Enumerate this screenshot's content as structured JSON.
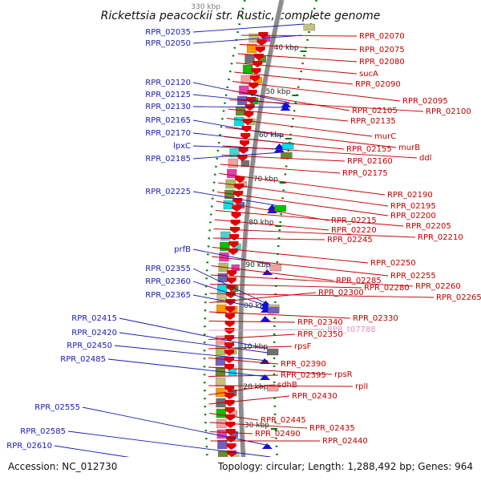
{
  "title": "Rickettsia peacockii str. Rustic, complete genome",
  "footer": {
    "accession": "Accession: NC_012730",
    "summary": "Topology: circular; Length: 1,288,492 bp; Genes: 964"
  },
  "top_partial_tick": "330 kbp",
  "ticks": [
    "340 kbp",
    "350 kbp",
    "360 kbp",
    "370 kbp",
    "380 kbp",
    "390 kbp",
    "400 kbp",
    "410 kbp",
    "420 kbp",
    "430 kbp"
  ],
  "left_genes": [
    "RPR_02035",
    "RPR_02050",
    "RPR_02120",
    "RPR_02125",
    "RPR_02130",
    "RPR_02165",
    "RPR_02170",
    "lpxC",
    "RPR_02185",
    "RPR_02225",
    "prfB",
    "RPR_02355",
    "RPR_02360",
    "RPR_02365",
    "RPR_02415",
    "RPR_02420",
    "RPR_02450",
    "RPR_02485",
    "RPR_02555",
    "RPR_02585",
    "RPR_02610"
  ],
  "right_genes": [
    "RPR_02070",
    "RPR_02075",
    "RPR_02080",
    "sucA",
    "RPR_02090",
    "RPR_02095",
    "RPR_02105",
    "RPR_02100",
    "RPR_02135",
    "murC",
    "murB",
    "RPR_02155",
    "ddl",
    "RPR_02160",
    "RPR_02175",
    "RPR_02190",
    "RPR_02195",
    "RPR_02200",
    "RPR_02215",
    "RPR_02205",
    "RPR_02220",
    "RPR_02210",
    "RPR_02245",
    "RPR_02250",
    "RPR_02255",
    "RPR_02285",
    "RPR_02260",
    "RPR_02280",
    "RPR_02265",
    "RPR_02300",
    "RPR_02330",
    "RPR_02340",
    "RPR_t07788",
    "RPR_02350",
    "rpsF",
    "RPR_02390",
    "rpsR",
    "RPR_02395",
    "rplI",
    "sdhB",
    "RPR_02430",
    "RPR_02445",
    "RPR_02435",
    "RPR_02490",
    "RPR_02440"
  ],
  "colors": {
    "backbone": "#8c8c8c",
    "forward_strand_genes": "#1010e0",
    "reverse_strand_genes": "#e00000",
    "orf_palette": [
      "#c8c080",
      "#aac060",
      "#4cd0d0",
      "#00e0e8",
      "#e040b0",
      "#707070",
      "#6a8a30",
      "#f0a0a0",
      "#ff9a00",
      "#7060c0",
      "#00c000"
    ],
    "left_label": "#1a1ab0",
    "right_label": "#c00000",
    "trna_label": "#e48fc8",
    "tick_marks": "#007a00"
  }
}
